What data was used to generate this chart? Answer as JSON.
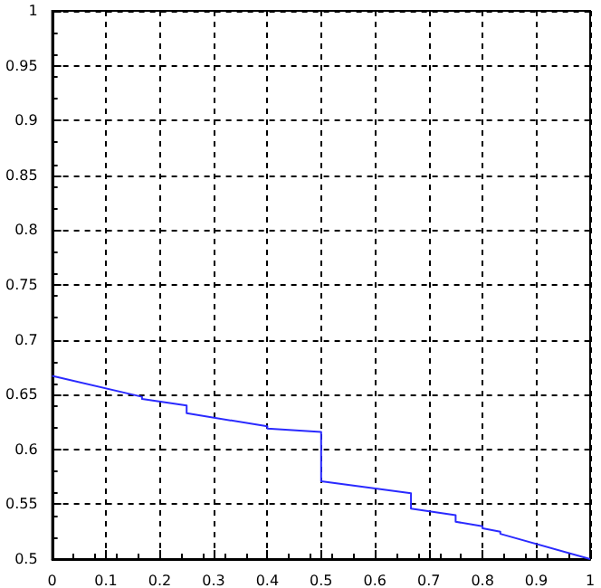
{
  "chart_data": {
    "type": "line",
    "x": [
      0,
      0.167,
      0.167,
      0.25,
      0.25,
      0.4,
      0.4,
      0.5,
      0.5,
      0.667,
      0.667,
      0.75,
      0.75,
      0.8,
      0.8,
      0.833,
      0.833,
      1
    ],
    "series": [
      {
        "color": "#2a2aff",
        "values": [
          0.667,
          0.648,
          0.646,
          0.64,
          0.633,
          0.621,
          0.619,
          0.616,
          0.571,
          0.56,
          0.546,
          0.54,
          0.534,
          0.53,
          0.528,
          0.525,
          0.523,
          0.5
        ]
      }
    ],
    "xlim": [
      0,
      1
    ],
    "xticks": [
      0,
      0.1,
      0.2,
      0.3,
      0.4,
      0.5,
      0.6,
      0.7,
      0.8,
      0.9,
      1
    ],
    "ylim": [
      0.5,
      1
    ],
    "yticks": [
      0.5,
      0.55,
      0.6,
      0.65,
      0.7,
      0.75,
      0.8,
      0.85,
      0.9,
      0.95,
      1
    ],
    "grid": true,
    "marker": "none",
    "line_style": "solid"
  }
}
